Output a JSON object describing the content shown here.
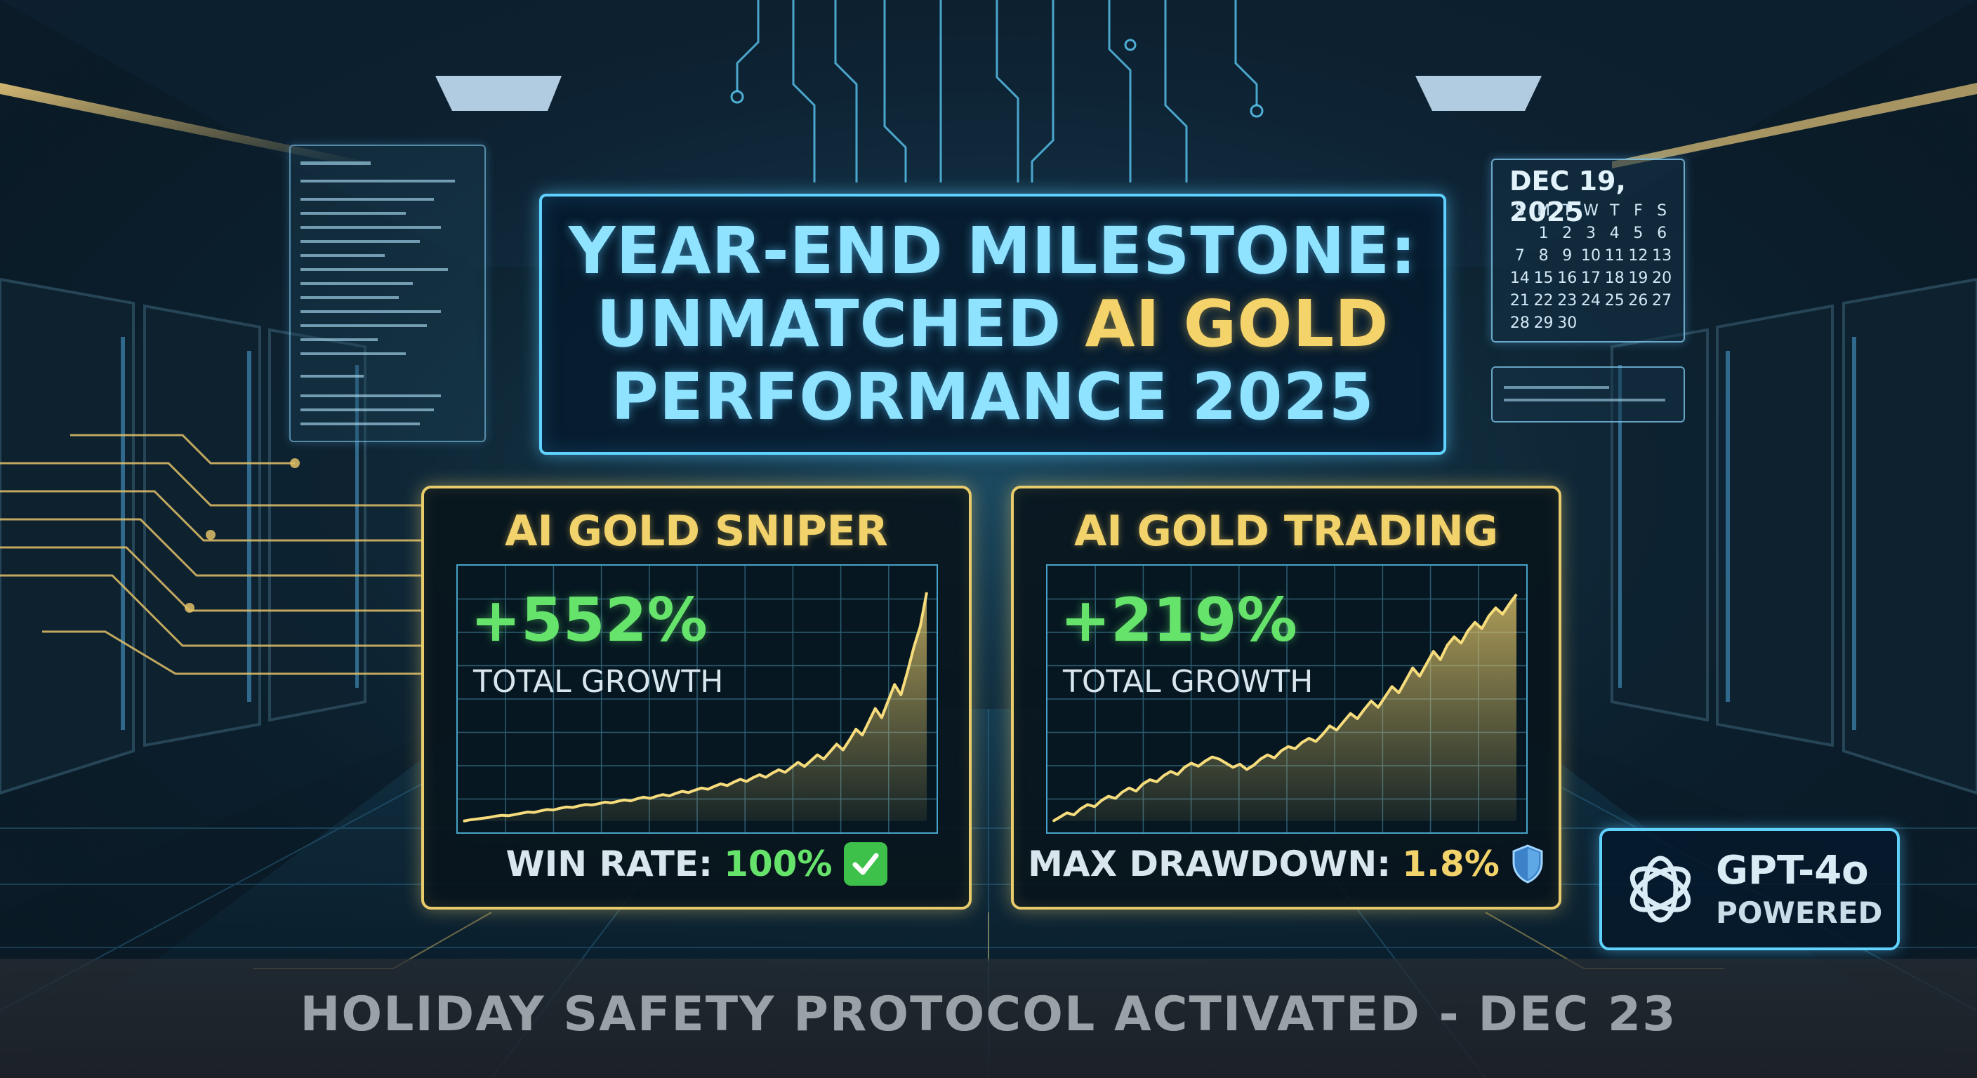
{
  "header": {
    "title_line1": "YEAR-END MILESTONE:",
    "title_line2_plain": "UNMATCHED",
    "title_line2_highlight": "AI GOLD",
    "title_line3": "PERFORMANCE 2025"
  },
  "cards": [
    {
      "name": "AI GOLD SNIPER",
      "growth": "+552%",
      "growth_label": "TOTAL GROWTH",
      "footer_label": "WIN RATE:",
      "footer_value": "100%",
      "footer_icon": "check-mark-icon"
    },
    {
      "name": "AI GOLD TRADING",
      "growth": "+219%",
      "growth_label": "TOTAL GROWTH",
      "footer_label": "MAX DRAWDOWN:",
      "footer_value": "1.8%",
      "footer_icon": "shield-icon"
    }
  ],
  "chart_data": [
    {
      "type": "area",
      "y": [
        0,
        3,
        5,
        7,
        9,
        12,
        14,
        13,
        16,
        19,
        22,
        21,
        25,
        28,
        27,
        31,
        34,
        33,
        37,
        40,
        39,
        42,
        46,
        44,
        48,
        51,
        49,
        54,
        58,
        55,
        60,
        64,
        61,
        67,
        72,
        69,
        75,
        80,
        77,
        84,
        90,
        86,
        94,
        101,
        96,
        105,
        112,
        106,
        116,
        124,
        118,
        130,
        142,
        132,
        146,
        160,
        150,
        168,
        186,
        172,
        196,
        222,
        208,
        240,
        272,
        250,
        290,
        330,
        305,
        360,
        420,
        470,
        552
      ],
      "ylim": [
        0,
        600
      ],
      "grid": true
    },
    {
      "type": "area",
      "y": [
        0,
        4,
        8,
        6,
        12,
        16,
        14,
        20,
        24,
        22,
        28,
        32,
        29,
        36,
        40,
        38,
        44,
        48,
        45,
        52,
        56,
        53,
        58,
        62,
        60,
        56,
        52,
        55,
        50,
        54,
        60,
        64,
        61,
        68,
        72,
        70,
        76,
        80,
        77,
        84,
        92,
        88,
        96,
        104,
        99,
        108,
        116,
        110,
        120,
        130,
        124,
        136,
        148,
        140,
        152,
        164,
        156,
        170,
        178,
        172,
        184,
        192,
        186,
        198,
        206,
        200,
        210,
        219
      ],
      "ylim": [
        0,
        240
      ],
      "grid": true
    }
  ],
  "calendar": {
    "title": "DEC 19, 2025",
    "weekdays": [
      "S",
      "M",
      "T",
      "W",
      "T",
      "F",
      "S"
    ],
    "leading_blanks": 1,
    "days": [
      1,
      2,
      3,
      4,
      5,
      6,
      7,
      8,
      9,
      10,
      11,
      12,
      13,
      14,
      15,
      16,
      17,
      18,
      19,
      20,
      21,
      22,
      23,
      24,
      25,
      26,
      27,
      28,
      29,
      30
    ]
  },
  "badge": {
    "name": "GPT-4o",
    "sub": "POWERED"
  },
  "banner": {
    "text": "HOLIDAY SAFETY PROTOCOL ACTIVATED - DEC 23"
  },
  "colors": {
    "accent_cyan": "#5fd2ff",
    "accent_gold": "#e8cc6c",
    "growth_green": "#66e36b"
  }
}
